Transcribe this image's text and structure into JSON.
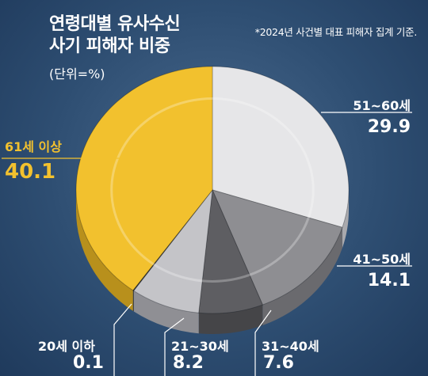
{
  "header": {
    "title_line1": "연령대별 유사수신",
    "title_line2": "사기 피해자 비중",
    "unit": "(단위=%)",
    "note": "*2024년 사건별 대표 피해자 집계 기준."
  },
  "colors": {
    "background": "#2e4e72",
    "highlight": "#f2c12e",
    "slice_51_60": "#e6e6e8",
    "slice_41_50": "#8e8e92",
    "slice_31_40": "#5e5e62",
    "slice_21_30": "#c4c4c8",
    "slice_20_under": "#3a3a3c"
  },
  "chart_data": {
    "type": "pie",
    "title": "연령대별 유사수신 사기 피해자 비중",
    "unit": "(단위=%)",
    "slices": [
      {
        "label": "51~60세",
        "value": 29.9
      },
      {
        "label": "41~50세",
        "value": 14.1
      },
      {
        "label": "31~40세",
        "value": 7.6
      },
      {
        "label": "21~30세",
        "value": 8.2
      },
      {
        "label": "20세 이하",
        "value": 0.1
      },
      {
        "label": "61세 이상",
        "value": 40.1
      }
    ]
  }
}
